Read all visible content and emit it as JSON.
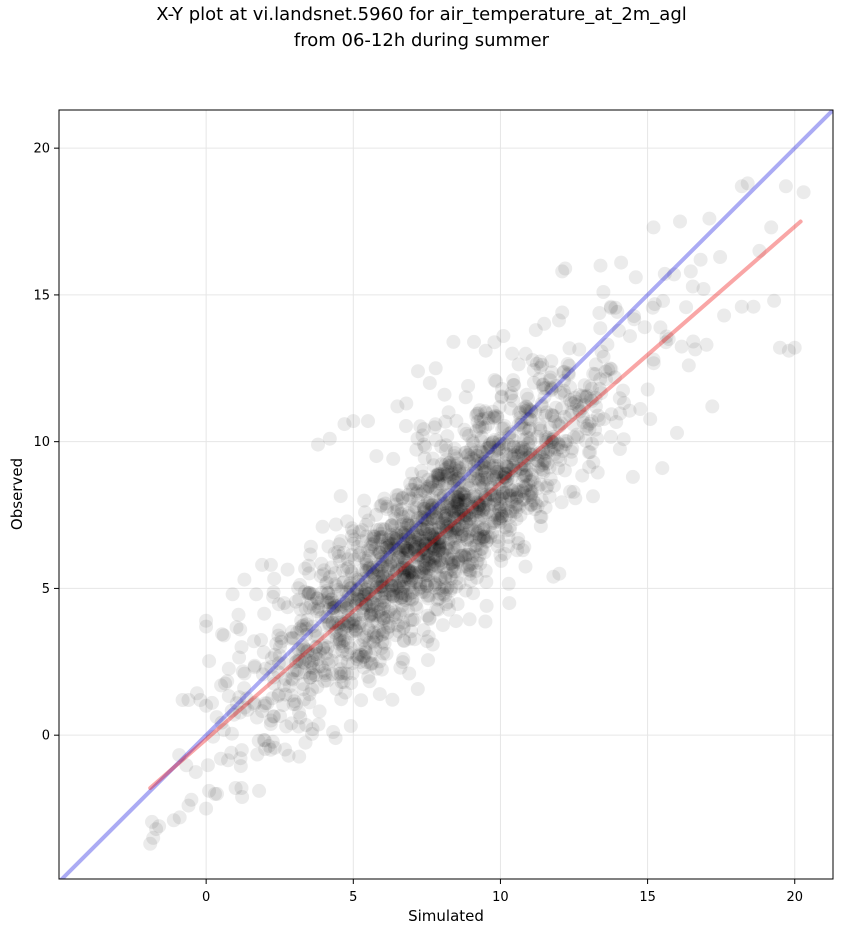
{
  "chart_data": {
    "type": "scatter",
    "title_lines": [
      "X-Y plot at vi.landsnet.5960 for air_temperature_at_2m_agl",
      "from 06-12h during summer"
    ],
    "xlabel": "Simulated",
    "ylabel": "Observed",
    "xlim": [
      -5,
      21.3
    ],
    "ylim": [
      -4.9,
      21.3
    ],
    "xticks": [
      0,
      5,
      10,
      15,
      20
    ],
    "yticks": [
      0,
      5,
      10,
      15,
      20
    ],
    "grid": true,
    "colors": {
      "points": "#000000",
      "one_to_one_line": "#0000dd",
      "fit_line": "#ee0000",
      "grid": "#e6e6e6"
    },
    "one_to_one_line": {
      "x": [
        -5,
        21.3
      ],
      "y": [
        -5,
        21.3
      ]
    },
    "fit_line": {
      "x": [
        -1.9,
        20.2
      ],
      "y": [
        -1.8,
        17.5
      ]
    },
    "point_distribution": {
      "count": 1900,
      "x_range": [
        -2,
        20
      ],
      "slope": 0.86,
      "intercept": -0.1,
      "spread": 1.45,
      "outliers": [
        [
          18.2,
          18.7
        ],
        [
          18.4,
          18.8
        ],
        [
          19.7,
          18.7
        ],
        [
          20.3,
          18.5
        ],
        [
          19.2,
          17.3
        ],
        [
          19.5,
          13.2
        ],
        [
          19.8,
          13.1
        ],
        [
          20,
          13.2
        ],
        [
          19.3,
          14.8
        ],
        [
          16.8,
          16.2
        ],
        [
          17.1,
          17.6
        ],
        [
          16.1,
          17.5
        ],
        [
          15.9,
          15.7
        ],
        [
          15.2,
          17.3
        ],
        [
          13.4,
          16
        ],
        [
          12.2,
          15.9
        ],
        [
          12.1,
          15.8
        ],
        [
          14.1,
          16.1
        ],
        [
          14.6,
          15.6
        ],
        [
          16.9,
          15.2
        ],
        [
          18.8,
          16.5
        ],
        [
          17.2,
          11.2
        ],
        [
          15.5,
          9.1
        ],
        [
          14.5,
          8.8
        ],
        [
          16,
          10.3
        ],
        [
          9.1,
          13.4
        ],
        [
          9.5,
          13.1
        ],
        [
          10.1,
          13.6
        ],
        [
          11.2,
          13.8
        ],
        [
          10.4,
          13
        ],
        [
          7.2,
          12.4
        ],
        [
          7.6,
          12
        ],
        [
          7.8,
          12.5
        ],
        [
          6.5,
          11.2
        ],
        [
          6.8,
          11.3
        ],
        [
          5,
          10.7
        ],
        [
          4.7,
          10.6
        ],
        [
          5.5,
          10.7
        ],
        [
          3.8,
          9.9
        ],
        [
          4.2,
          10.1
        ],
        [
          8.1,
          11.6
        ],
        [
          9.8,
          12.1
        ],
        [
          10.3,
          4.5
        ],
        [
          9.5,
          5.6
        ],
        [
          11.8,
          5.4
        ],
        [
          12,
          5.5
        ],
        [
          6.6,
          2.3
        ],
        [
          6.9,
          2.1
        ],
        [
          5.9,
          1.4
        ],
        [
          6.7,
          2.6
        ],
        [
          -0.8,
          1.2
        ],
        [
          -0.6,
          1.2
        ],
        [
          -0.2,
          1.2
        ],
        [
          0,
          1
        ],
        [
          0.2,
          1.1
        ],
        [
          0,
          3.7
        ],
        [
          0,
          3.9
        ],
        [
          0.9,
          4.8
        ],
        [
          1.1,
          4.1
        ],
        [
          1.7,
          4.8
        ],
        [
          1.9,
          5.8
        ],
        [
          2.2,
          5.8
        ],
        [
          1.3,
          5.3
        ],
        [
          0.6,
          3.4
        ],
        [
          1.2,
          3
        ],
        [
          -1.9,
          -3.7
        ],
        [
          -1.8,
          -3.5
        ],
        [
          -1.7,
          -3.2
        ],
        [
          -1.6,
          -3.1
        ],
        [
          -1.1,
          -2.9
        ],
        [
          -0.9,
          -2.8
        ],
        [
          -0.6,
          -2.4
        ],
        [
          -0.5,
          -2.2
        ],
        [
          0,
          -2.5
        ],
        [
          0.1,
          -1.9
        ],
        [
          0.3,
          -2
        ],
        [
          1,
          -1.8
        ],
        [
          1.2,
          -1.8
        ],
        [
          1.8,
          -1.9
        ],
        [
          0.5,
          -0.8
        ],
        [
          2.8,
          -0.7
        ],
        [
          4.4,
          -0.1
        ],
        [
          2.2,
          0.5
        ],
        [
          2.9,
          0.4
        ],
        [
          3.2,
          0.6
        ],
        [
          13.5,
          15.1
        ],
        [
          12.1,
          14.4
        ],
        [
          14.9,
          13.9
        ],
        [
          15.2,
          12.8
        ],
        [
          16.4,
          12.6
        ],
        [
          17.6,
          14.3
        ],
        [
          18.2,
          14.6
        ],
        [
          18.6,
          14.6
        ],
        [
          17,
          13.3
        ],
        [
          8.4,
          13.4
        ]
      ]
    }
  }
}
